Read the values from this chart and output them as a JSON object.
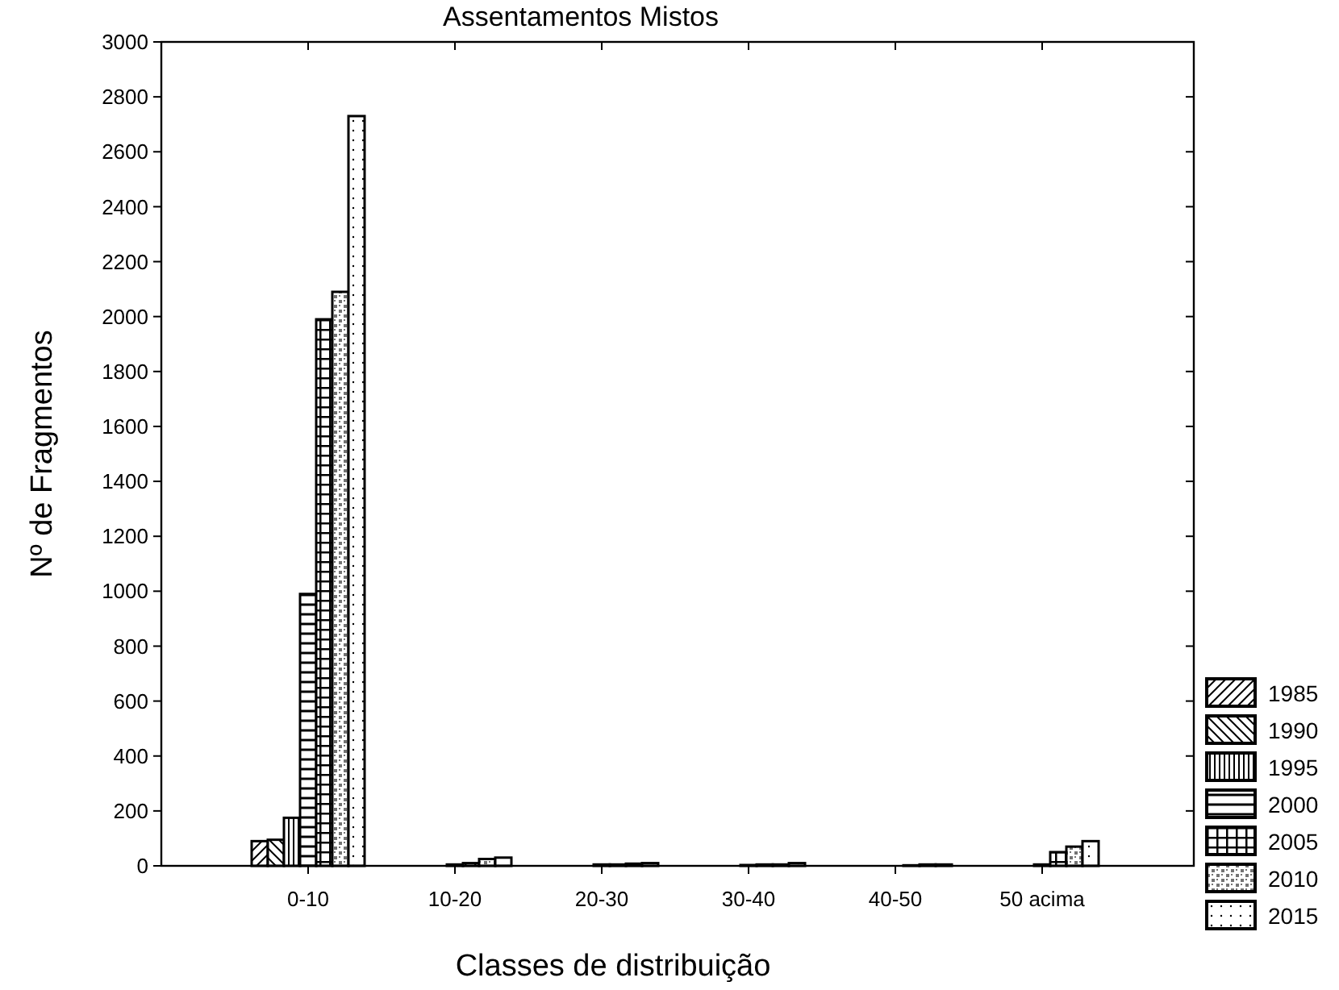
{
  "chart_data": {
    "type": "bar",
    "title": "Assentamentos Mistos",
    "xlabel": "Classes de distribuição",
    "ylabel": "Nº de Fragmentos",
    "categories": [
      "0-10",
      "10-20",
      "20-30",
      "30-40",
      "40-50",
      "50 acima"
    ],
    "series": [
      {
        "name": "1985",
        "color": "#000000",
        "values": [
          90,
          null,
          null,
          null,
          null,
          null
        ]
      },
      {
        "name": "1990",
        "color": "#000000",
        "values": [
          95,
          null,
          null,
          null,
          null,
          null
        ]
      },
      {
        "name": "1995",
        "color": "#000000",
        "values": [
          175,
          null,
          null,
          null,
          null,
          null
        ]
      },
      {
        "name": "2000",
        "color": "#000000",
        "values": [
          990,
          5,
          5,
          3,
          null,
          5
        ]
      },
      {
        "name": "2005",
        "color": "#000000",
        "values": [
          1990,
          10,
          5,
          5,
          2,
          50
        ]
      },
      {
        "name": "2010",
        "color": "#000000",
        "values": [
          2090,
          25,
          8,
          5,
          5,
          70
        ]
      },
      {
        "name": "2015",
        "color": "#000000",
        "values": [
          2730,
          30,
          10,
          10,
          5,
          90
        ]
      }
    ],
    "ylim": [
      0,
      3000
    ],
    "yticks": [
      0,
      200,
      400,
      600,
      800,
      1000,
      1200,
      1400,
      1600,
      1800,
      2000,
      2200,
      2400,
      2600,
      2800,
      3000
    ],
    "grid": false,
    "legend": "bottom right"
  }
}
